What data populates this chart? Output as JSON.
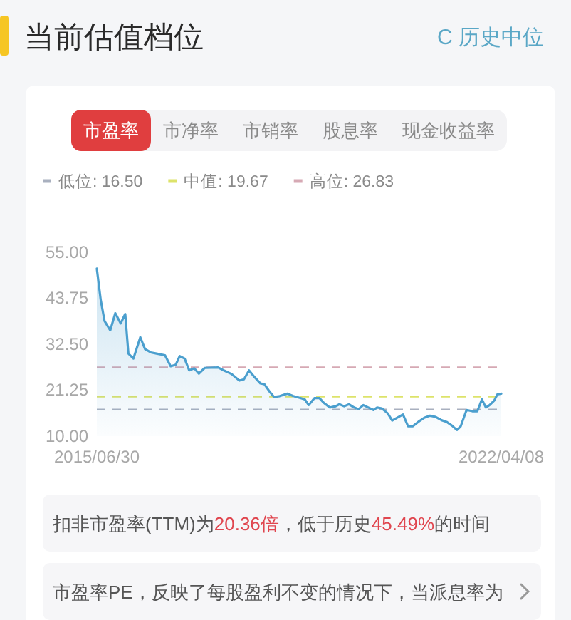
{
  "chart_data": {
    "type": "area",
    "title": "当前估值档位",
    "annotations": [
      "C 历史中位",
      "市盈率",
      "市净率",
      "市销率",
      "股息率",
      "现金收益率",
      "扣非市盈率(TTM)为20.36倍，低于历史45.49%的时间",
      "市盈率PE，反映了每股盈利不变的情况下，当派息率为"
    ],
    "x": [
      "2015-06-30",
      "2015-07-24",
      "2015-08-16",
      "2015-09-20",
      "2015-10-21",
      "2015-11-23",
      "2015-12-21",
      "2016-01-09",
      "2016-02-09",
      "2016-03-22",
      "2016-04-20",
      "2016-05-25",
      "2016-06-29",
      "2016-08-20",
      "2016-09-24",
      "2016-10-25",
      "2016-11-18",
      "2016-12-18",
      "2017-01-15",
      "2017-02-15",
      "2017-03-15",
      "2017-04-20",
      "2017-07-11",
      "2017-08-15",
      "2017-10-02",
      "2017-11-18",
      "2017-12-16",
      "2018-01-16",
      "2018-02-20",
      "2018-03-27",
      "2018-04-20",
      "2018-05-20",
      "2018-06-18",
      "2018-07-23",
      "2018-09-08",
      "2018-10-14",
      "2018-11-30",
      "2018-12-23",
      "2019-01-16",
      "2019-02-20",
      "2019-03-23",
      "2019-04-20",
      "2019-05-25",
      "2019-06-30",
      "2019-07-23",
      "2019-08-21",
      "2019-09-20",
      "2019-10-21",
      "2019-11-18",
      "2019-12-16",
      "2020-01-16",
      "2020-02-16",
      "2020-03-10",
      "2020-04-07",
      "2020-05-13",
      "2020-06-10",
      "2020-07-11",
      "2020-08-15",
      "2020-09-15",
      "2020-10-13",
      "2020-11-17",
      "2020-12-23",
      "2021-01-27",
      "2021-03-03",
      "2021-04-08",
      "2021-05-08",
      "2021-06-10",
      "2021-07-11",
      "2021-08-03",
      "2021-09-08",
      "2021-10-13",
      "2021-11-13",
      "2021-12-11",
      "2022-01-04",
      "2022-01-27",
      "2022-02-24",
      "2022-03-15",
      "2022-04-08"
    ],
    "series": [
      {
        "color": "#4b9fce",
        "values": [
          51.0,
          43.3,
          38.2,
          35.9,
          40.1,
          37.6,
          39.9,
          30.2,
          29.0,
          34.2,
          31.3,
          30.5,
          30.2,
          29.8,
          27.1,
          27.5,
          29.6,
          29.0,
          26.1,
          26.6,
          25.3,
          26.7,
          26.8,
          26.1,
          25.2,
          23.6,
          23.9,
          26.1,
          24.4,
          22.9,
          22.7,
          21.0,
          19.6,
          19.8,
          20.4,
          19.8,
          19.3,
          19.0,
          17.6,
          19.3,
          19.3,
          18.1,
          17.0,
          17.3,
          17.8,
          17.3,
          17.8,
          17.0,
          16.6,
          17.6,
          17.0,
          16.4,
          17.0,
          16.8,
          15.6,
          13.8,
          14.5,
          15.3,
          12.4,
          12.4,
          13.5,
          14.5,
          15.0,
          14.7,
          13.9,
          13.5,
          12.6,
          11.5,
          12.4,
          16.4,
          16.1,
          16.1,
          19.0,
          17.0,
          17.6,
          18.7,
          20.2,
          20.4
        ]
      }
    ],
    "xlim": [
      "2015-06-30",
      "2022-04-08"
    ],
    "xticks": [
      {
        "value": "2015-06-30",
        "label": "2015/06/30"
      },
      {
        "value": "2022-04-08",
        "label": "2022/04/08"
      }
    ],
    "ylim": [
      10,
      55
    ],
    "yticks": [
      {
        "value": 10,
        "label": "10.00"
      },
      {
        "value": 21.25,
        "label": "21.25"
      },
      {
        "value": 32.5,
        "label": "32.50"
      },
      {
        "value": 43.75,
        "label": "43.75"
      },
      {
        "value": 55,
        "label": "55.00"
      }
    ],
    "ref_lines": [
      {
        "axis": "y",
        "value": 16.5,
        "label": "低位: 16.50",
        "color": "#a9b0bf",
        "line_style": "dashed"
      },
      {
        "axis": "y",
        "value": 19.67,
        "label": "中值: 19.67",
        "color": "#dde36a",
        "line_style": "dashed"
      },
      {
        "axis": "y",
        "value": 26.83,
        "label": "高位: 26.83",
        "color": "#d6a9b4",
        "line_style": "dashed"
      }
    ],
    "legend": "top",
    "grid": false
  }
}
